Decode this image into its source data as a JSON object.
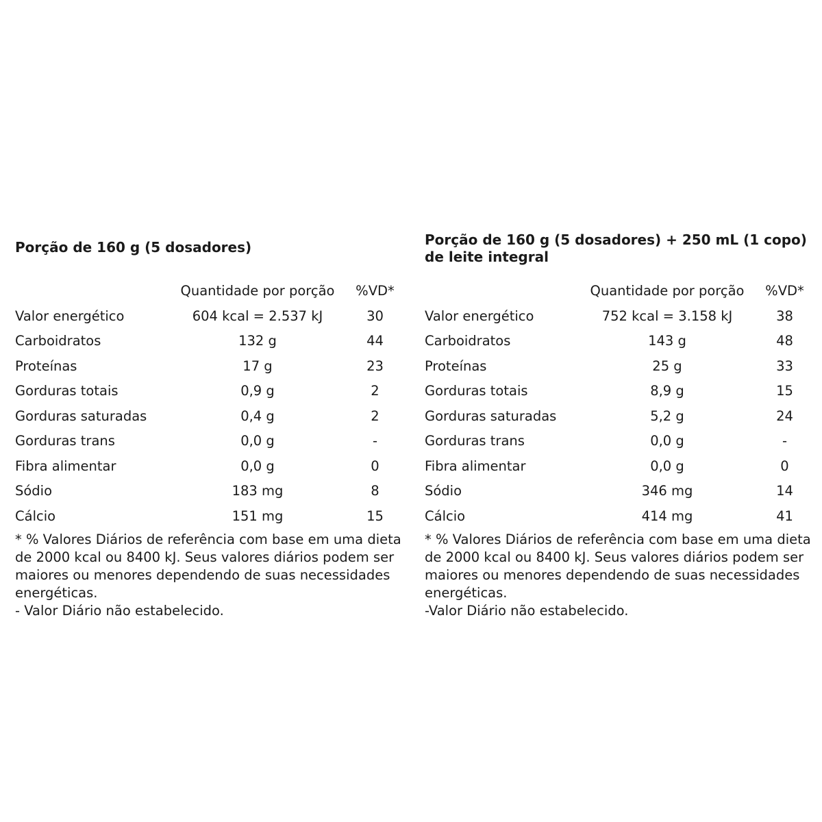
{
  "page": {
    "background_color": "#ffffff",
    "text_color": "#1a1a1a"
  },
  "tables": [
    {
      "title": "Porção de 160 g (5 dosadores)",
      "header": {
        "quantity": "Quantidade por porção",
        "dv": "%VD*"
      },
      "rows": [
        {
          "label": "Valor energético",
          "quantity": "604 kcal = 2.537 kJ",
          "dv": "30"
        },
        {
          "label": "Carboidratos",
          "quantity": "132 g",
          "dv": "44"
        },
        {
          "label": "Proteínas",
          "quantity": "17 g",
          "dv": "23"
        },
        {
          "label": "Gorduras totais",
          "quantity": "0,9 g",
          "dv": "2"
        },
        {
          "label": "Gorduras saturadas",
          "quantity": "0,4 g",
          "dv": "2"
        },
        {
          "label": "Gorduras trans",
          "quantity": "0,0 g",
          "dv": "-"
        },
        {
          "label": "Fibra alimentar",
          "quantity": "0,0 g",
          "dv": "0"
        },
        {
          "label": "Sódio",
          "quantity": "183 mg",
          "dv": "8"
        },
        {
          "label": "Cálcio",
          "quantity": "151 mg",
          "dv": "15"
        }
      ],
      "footnote": "* % Valores Diários de referência com base em uma dieta de 2000 kcal ou 8400 kJ. Seus valores diários podem ser maiores ou menores dependendo de suas necessidades energéticas.",
      "footnote2": "- Valor Diário não estabelecido."
    },
    {
      "title": "Porção de 160 g (5 dosadores) + 250 mL (1 copo) de leite integral",
      "header": {
        "quantity": "Quantidade por porção",
        "dv": "%VD*"
      },
      "rows": [
        {
          "label": "Valor energético",
          "quantity": "752 kcal = 3.158 kJ",
          "dv": "38"
        },
        {
          "label": "Carboidratos",
          "quantity": "143 g",
          "dv": "48"
        },
        {
          "label": "Proteínas",
          "quantity": "25 g",
          "dv": "33"
        },
        {
          "label": "Gorduras totais",
          "quantity": "8,9 g",
          "dv": "15"
        },
        {
          "label": "Gorduras saturadas",
          "quantity": "5,2 g",
          "dv": "24"
        },
        {
          "label": "Gorduras trans",
          "quantity": "0,0 g",
          "dv": "-"
        },
        {
          "label": "Fibra alimentar",
          "quantity": "0,0 g",
          "dv": "0"
        },
        {
          "label": "Sódio",
          "quantity": "346 mg",
          "dv": "14"
        },
        {
          "label": "Cálcio",
          "quantity": "414 mg",
          "dv": "41"
        }
      ],
      "footnote": "* % Valores Diários de referência com base em uma dieta de 2000 kcal ou 8400 kJ. Seus valores diários podem ser maiores ou menores dependendo de suas necessidades energéticas.",
      "footnote2": "-Valor Diário não estabelecido."
    }
  ]
}
